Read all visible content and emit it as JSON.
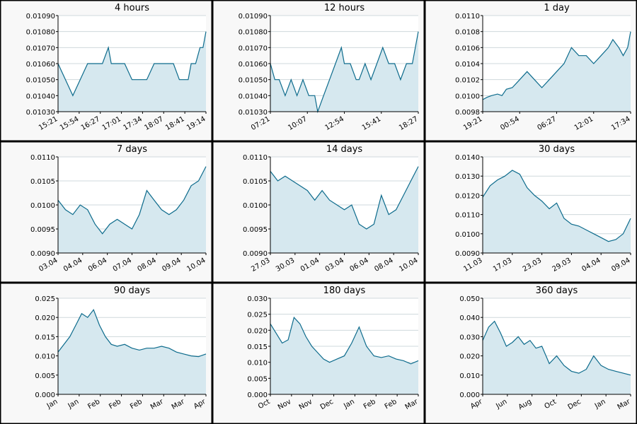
{
  "colors": {
    "line": "#0d6b8c",
    "fill": "#d6e8ef",
    "grid": "#cfd8dc",
    "border": "#000000",
    "panel_bg": "#f8f8f8",
    "plot_bg": "#ffffff"
  },
  "chart_data": [
    {
      "type": "area",
      "title": "4 hours",
      "ylim": [
        0.0103,
        0.0109
      ],
      "yticks": [
        "0.01030",
        "0.01040",
        "0.01050",
        "0.01060",
        "0.01070",
        "0.01080",
        "0.01090"
      ],
      "xticks": [
        "15:21",
        "15:54",
        "16:27",
        "17:01",
        "17:34",
        "18:07",
        "18:41",
        "19:14"
      ],
      "grid": true,
      "series": [
        {
          "x": [
            0,
            0.05,
            0.1,
            0.15,
            0.2,
            0.3,
            0.34,
            0.36,
            0.4,
            0.45,
            0.5,
            0.52,
            0.54,
            0.6,
            0.65,
            0.7,
            0.74,
            0.78,
            0.82,
            0.85,
            0.88,
            0.9,
            0.93,
            0.96,
            0.98,
            1.0
          ],
          "values": [
            0.0106,
            0.0105,
            0.0104,
            0.0105,
            0.0106,
            0.0106,
            0.0107,
            0.0106,
            0.0106,
            0.0106,
            0.0105,
            0.0105,
            0.0105,
            0.0105,
            0.0106,
            0.0106,
            0.0106,
            0.0106,
            0.0105,
            0.0105,
            0.0105,
            0.0106,
            0.0106,
            0.0107,
            0.0107,
            0.0108
          ]
        }
      ]
    },
    {
      "type": "area",
      "title": "12 hours",
      "ylim": [
        0.0103,
        0.0109
      ],
      "yticks": [
        "0.01030",
        "0.01040",
        "0.01050",
        "0.01060",
        "0.01070",
        "0.01080",
        "0.01090"
      ],
      "xticks": [
        "07:21",
        "10:07",
        "12:54",
        "15:41",
        "18:27"
      ],
      "grid": true,
      "series": [
        {
          "x": [
            0,
            0.03,
            0.06,
            0.1,
            0.14,
            0.18,
            0.22,
            0.26,
            0.3,
            0.32,
            0.36,
            0.4,
            0.44,
            0.48,
            0.5,
            0.54,
            0.58,
            0.6,
            0.64,
            0.68,
            0.72,
            0.76,
            0.8,
            0.84,
            0.88,
            0.92,
            0.96,
            0.98,
            1.0
          ],
          "values": [
            0.0106,
            0.0105,
            0.0105,
            0.0104,
            0.0105,
            0.0104,
            0.0105,
            0.0104,
            0.0104,
            0.0103,
            0.0104,
            0.0105,
            0.0106,
            0.0107,
            0.0106,
            0.0106,
            0.0105,
            0.0105,
            0.0106,
            0.0105,
            0.0106,
            0.0107,
            0.0106,
            0.0106,
            0.0105,
            0.0106,
            0.0106,
            0.0107,
            0.0108
          ]
        }
      ]
    },
    {
      "type": "area",
      "title": "1 day",
      "ylim": [
        0.0098,
        0.011
      ],
      "yticks": [
        "0.0098",
        "0.0100",
        "0.0102",
        "0.0104",
        "0.0106",
        "0.0108",
        "0.0110"
      ],
      "xticks": [
        "19:21",
        "00:54",
        "06:27",
        "12:01",
        "17:34"
      ],
      "grid": true,
      "series": [
        {
          "x": [
            0,
            0.03,
            0.06,
            0.1,
            0.13,
            0.16,
            0.2,
            0.25,
            0.3,
            0.35,
            0.4,
            0.45,
            0.5,
            0.55,
            0.6,
            0.65,
            0.7,
            0.75,
            0.8,
            0.85,
            0.88,
            0.92,
            0.95,
            0.98,
            1.0
          ],
          "values": [
            0.00995,
            0.00998,
            0.01,
            0.01002,
            0.01,
            0.01008,
            0.0101,
            0.0102,
            0.0103,
            0.0102,
            0.0101,
            0.0102,
            0.0103,
            0.0104,
            0.0106,
            0.0105,
            0.0105,
            0.0104,
            0.0105,
            0.0106,
            0.0107,
            0.0106,
            0.0105,
            0.0106,
            0.0108
          ]
        }
      ]
    },
    {
      "type": "area",
      "title": "7 days",
      "ylim": [
        0.009,
        0.011
      ],
      "yticks": [
        "0.0090",
        "0.0095",
        "0.0100",
        "0.0105",
        "0.0110"
      ],
      "xticks": [
        "03.04",
        "04.04",
        "06.04",
        "07.04",
        "08.04",
        "09.04",
        "10.04"
      ],
      "grid": true,
      "series": [
        {
          "x": [
            0,
            0.05,
            0.1,
            0.15,
            0.2,
            0.25,
            0.3,
            0.35,
            0.4,
            0.45,
            0.5,
            0.55,
            0.6,
            0.65,
            0.7,
            0.75,
            0.8,
            0.85,
            0.9,
            0.95,
            1.0
          ],
          "values": [
            0.0101,
            0.0099,
            0.0098,
            0.01,
            0.0099,
            0.0096,
            0.0094,
            0.0096,
            0.0097,
            0.0096,
            0.0095,
            0.0098,
            0.0103,
            0.0101,
            0.0099,
            0.0098,
            0.0099,
            0.0101,
            0.0104,
            0.0105,
            0.0108
          ]
        }
      ]
    },
    {
      "type": "area",
      "title": "14 days",
      "ylim": [
        0.009,
        0.011
      ],
      "yticks": [
        "0.0090",
        "0.0095",
        "0.0100",
        "0.0105",
        "0.0110"
      ],
      "xticks": [
        "27.03",
        "30.03",
        "01.04",
        "03.04",
        "06.04",
        "08.04",
        "10.04"
      ],
      "grid": true,
      "series": [
        {
          "x": [
            0,
            0.05,
            0.1,
            0.15,
            0.2,
            0.25,
            0.3,
            0.35,
            0.4,
            0.45,
            0.5,
            0.55,
            0.6,
            0.65,
            0.7,
            0.75,
            0.8,
            0.85,
            0.9,
            0.95,
            1.0
          ],
          "values": [
            0.0107,
            0.0105,
            0.0106,
            0.0105,
            0.0104,
            0.0103,
            0.0101,
            0.0103,
            0.0101,
            0.01,
            0.0099,
            0.01,
            0.0096,
            0.0095,
            0.0096,
            0.0102,
            0.0098,
            0.0099,
            0.0102,
            0.0105,
            0.0108
          ]
        }
      ]
    },
    {
      "type": "area",
      "title": "30 days",
      "ylim": [
        0.009,
        0.014
      ],
      "yticks": [
        "0.0090",
        "0.0100",
        "0.0110",
        "0.0120",
        "0.0130",
        "0.0140"
      ],
      "xticks": [
        "11.03",
        "17.03",
        "23.03",
        "29.03",
        "04.04",
        "09.04"
      ],
      "grid": true,
      "series": [
        {
          "x": [
            0,
            0.05,
            0.1,
            0.15,
            0.2,
            0.25,
            0.3,
            0.35,
            0.4,
            0.45,
            0.5,
            0.55,
            0.6,
            0.65,
            0.7,
            0.75,
            0.8,
            0.85,
            0.9,
            0.95,
            1.0
          ],
          "values": [
            0.0119,
            0.0125,
            0.0128,
            0.013,
            0.0133,
            0.0131,
            0.0124,
            0.012,
            0.0117,
            0.0113,
            0.0116,
            0.0108,
            0.0105,
            0.0104,
            0.0102,
            0.01,
            0.0098,
            0.0096,
            0.0097,
            0.01,
            0.0108
          ]
        }
      ]
    },
    {
      "type": "area",
      "title": "90 days",
      "ylim": [
        0,
        0.025
      ],
      "yticks": [
        "0.000",
        "0.005",
        "0.010",
        "0.015",
        "0.020",
        "0.025"
      ],
      "xticks": [
        "Jan",
        "Jan",
        "Feb",
        "Feb",
        "Feb",
        "Mar",
        "Mar",
        "Apr"
      ],
      "grid": true,
      "series": [
        {
          "x": [
            0,
            0.04,
            0.08,
            0.12,
            0.16,
            0.2,
            0.24,
            0.28,
            0.32,
            0.36,
            0.4,
            0.45,
            0.5,
            0.55,
            0.6,
            0.65,
            0.7,
            0.75,
            0.8,
            0.85,
            0.9,
            0.95,
            1.0
          ],
          "values": [
            0.011,
            0.013,
            0.015,
            0.018,
            0.021,
            0.02,
            0.022,
            0.018,
            0.015,
            0.013,
            0.0125,
            0.013,
            0.012,
            0.0115,
            0.012,
            0.012,
            0.0125,
            0.012,
            0.011,
            0.0105,
            0.01,
            0.0098,
            0.0105
          ]
        }
      ]
    },
    {
      "type": "area",
      "title": "180 days",
      "ylim": [
        0,
        0.03
      ],
      "yticks": [
        "0.000",
        "0.005",
        "0.010",
        "0.015",
        "0.020",
        "0.025",
        "0.030"
      ],
      "xticks": [
        "Oct",
        "Nov",
        "Nov",
        "Dec",
        "Jan",
        "Feb",
        "Feb",
        "Mar"
      ],
      "grid": true,
      "series": [
        {
          "x": [
            0,
            0.04,
            0.08,
            0.12,
            0.16,
            0.2,
            0.24,
            0.28,
            0.32,
            0.36,
            0.4,
            0.45,
            0.5,
            0.55,
            0.6,
            0.65,
            0.7,
            0.75,
            0.8,
            0.85,
            0.9,
            0.95,
            1.0
          ],
          "values": [
            0.022,
            0.019,
            0.016,
            0.017,
            0.024,
            0.022,
            0.018,
            0.015,
            0.013,
            0.011,
            0.01,
            0.011,
            0.012,
            0.016,
            0.021,
            0.015,
            0.012,
            0.0115,
            0.012,
            0.011,
            0.0105,
            0.0095,
            0.0105
          ]
        }
      ]
    },
    {
      "type": "area",
      "title": "360 days",
      "ylim": [
        0,
        0.05
      ],
      "yticks": [
        "0.000",
        "0.010",
        "0.020",
        "0.030",
        "0.040",
        "0.050"
      ],
      "xticks": [
        "Apr",
        "Jun",
        "Aug",
        "Oct",
        "Dec",
        "Jan",
        "Mar"
      ],
      "grid": true,
      "series": [
        {
          "x": [
            0,
            0.04,
            0.08,
            0.12,
            0.16,
            0.2,
            0.24,
            0.28,
            0.32,
            0.36,
            0.4,
            0.45,
            0.5,
            0.55,
            0.6,
            0.65,
            0.7,
            0.75,
            0.8,
            0.85,
            0.9,
            0.95,
            1.0
          ],
          "values": [
            0.028,
            0.035,
            0.038,
            0.032,
            0.025,
            0.027,
            0.03,
            0.026,
            0.028,
            0.024,
            0.025,
            0.016,
            0.02,
            0.015,
            0.012,
            0.011,
            0.013,
            0.02,
            0.015,
            0.013,
            0.012,
            0.011,
            0.01
          ]
        }
      ]
    }
  ]
}
